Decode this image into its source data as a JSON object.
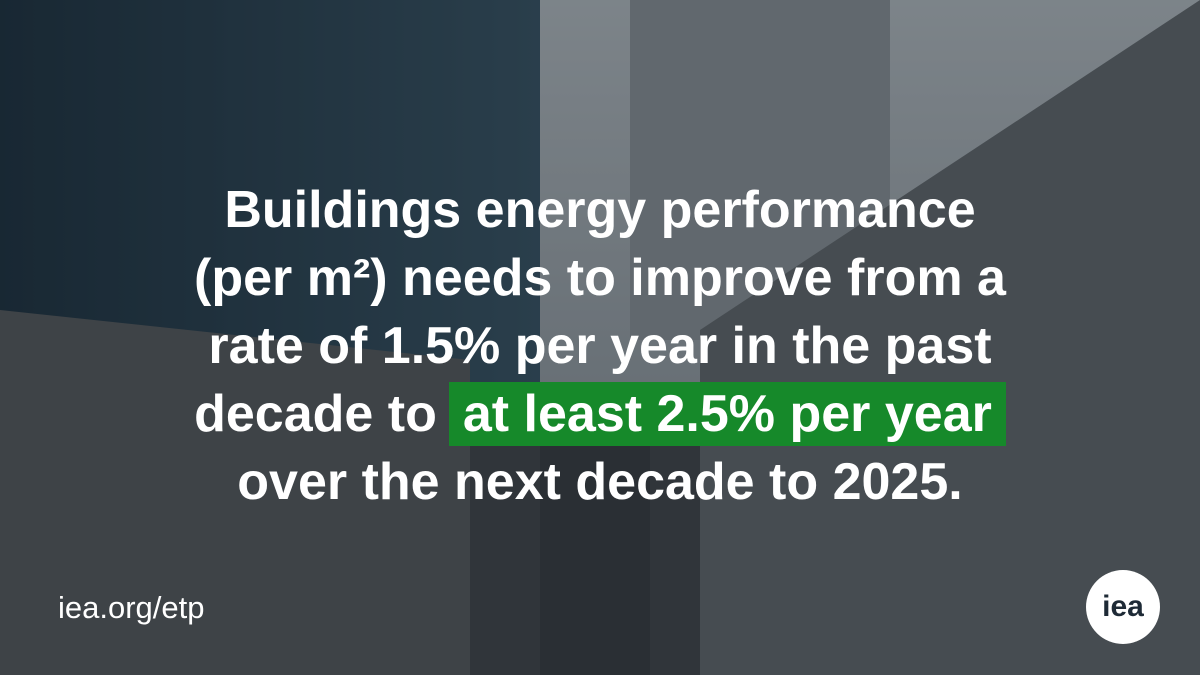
{
  "headline": {
    "lines": [
      "Buildings energy performance",
      "(per m²) needs to improve from a",
      "rate of 1.5% per year in the past",
      "decade to",
      "over the next decade to 2025."
    ],
    "highlight": "at least 2.5% per year"
  },
  "footer": {
    "url": "iea.org/etp",
    "logo": "iea"
  }
}
